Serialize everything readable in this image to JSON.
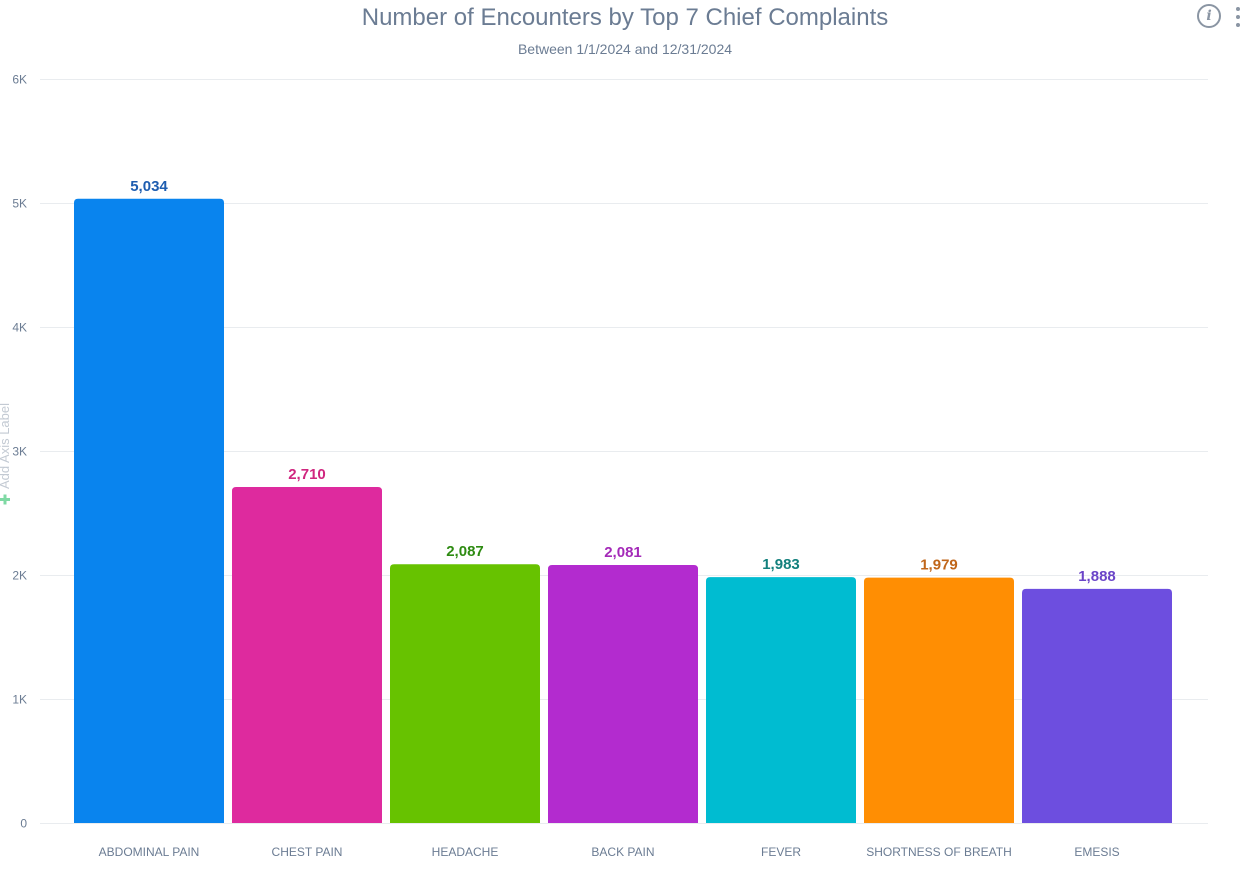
{
  "chart_data": {
    "type": "bar",
    "title": "Number of Encounters by Top 7 Chief Complaints",
    "subtitle": "Between 1/1/2024 and 12/31/2024",
    "xlabel": "",
    "ylabel": "",
    "axis_placeholder": "Add Axis Label",
    "ylim": [
      0,
      6000
    ],
    "yticks": [
      0,
      1000,
      2000,
      3000,
      4000,
      5000,
      6000
    ],
    "ytick_labels": [
      "0",
      "1K",
      "2K",
      "3K",
      "4K",
      "5K",
      "6K"
    ],
    "grid": true,
    "legend": "none",
    "categories": [
      "ABDOMINAL PAIN",
      "CHEST PAIN",
      "HEADACHE",
      "BACK PAIN",
      "FEVER",
      "SHORTNESS OF BREATH",
      "EMESIS"
    ],
    "values": [
      5034,
      2710,
      2087,
      2081,
      1983,
      1979,
      1888
    ],
    "value_labels": [
      "5,034",
      "2,710",
      "2,087",
      "2,081",
      "1,983",
      "1,979",
      "1,888"
    ],
    "bar_colors": [
      "#0984EE",
      "#DE2A9E",
      "#67C200",
      "#B32BCF",
      "#00BCD1",
      "#FF8E03",
      "#6D4EDF"
    ],
    "label_colors": [
      "#1E5DB0",
      "#D0267F",
      "#2E8B12",
      "#A42AB8",
      "#13807D",
      "#C0661A",
      "#6B45C8"
    ]
  },
  "toolbar": {
    "info_icon": "info-icon",
    "info_glyph": "i",
    "menu_icon": "more-vertical-icon"
  }
}
